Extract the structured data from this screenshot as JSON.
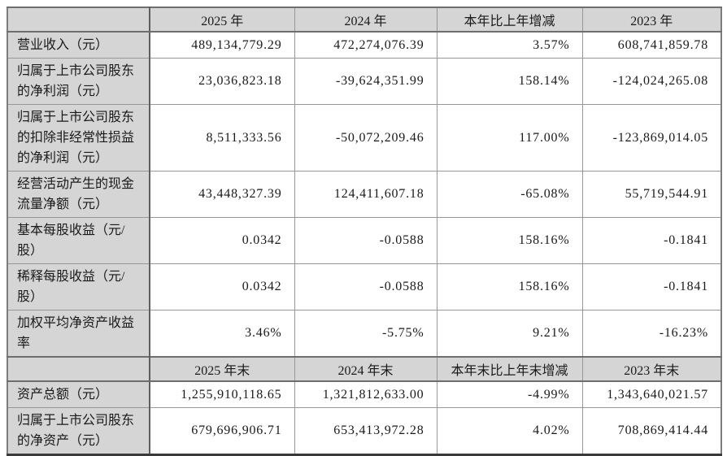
{
  "table": {
    "header1": [
      "",
      "2025 年",
      "2024 年",
      "本年比上年增减",
      "2023 年"
    ],
    "rows1": [
      {
        "label": "营业收入（元）",
        "y2025": "489,134,779.29",
        "y2024": "472,274,076.39",
        "change": "3.57%",
        "y2023": "608,741,859.78"
      },
      {
        "label": "归属于上市公司股东的净利润（元）",
        "y2025": "23,036,823.18",
        "y2024": "-39,624,351.99",
        "change": "158.14%",
        "y2023": "-124,024,265.08"
      },
      {
        "label": "归属于上市公司股东的扣除非经常性损益的净利润（元）",
        "y2025": "8,511,333.56",
        "y2024": "-50,072,209.46",
        "change": "117.00%",
        "y2023": "-123,869,014.05"
      },
      {
        "label": "经营活动产生的现金流量净额（元）",
        "y2025": "43,448,327.39",
        "y2024": "124,411,607.18",
        "change": "-65.08%",
        "y2023": "55,719,544.91"
      },
      {
        "label": "基本每股收益（元/股）",
        "y2025": "0.0342",
        "y2024": "-0.0588",
        "change": "158.16%",
        "y2023": "-0.1841"
      },
      {
        "label": "稀释每股收益（元/股）",
        "y2025": "0.0342",
        "y2024": "-0.0588",
        "change": "158.16%",
        "y2023": "-0.1841"
      },
      {
        "label": "加权平均净资产收益率",
        "y2025": "3.46%",
        "y2024": "-5.75%",
        "change": "9.21%",
        "y2023": "-16.23%"
      }
    ],
    "header2": [
      "",
      "2025 年末",
      "2024 年末",
      "本年末比上年末增减",
      "2023 年末"
    ],
    "rows2": [
      {
        "label": "资产总额（元）",
        "y2025": "1,255,910,118.65",
        "y2024": "1,321,812,633.00",
        "change": "-4.99%",
        "y2023": "1,343,640,021.57"
      },
      {
        "label": "归属于上市公司股东的净资产（元）",
        "y2025": "679,696,906.71",
        "y2024": "653,413,972.28",
        "change": "4.02%",
        "y2023": "708,869,414.44"
      }
    ],
    "colors": {
      "header_bg": "#d5d5d5",
      "label_bg": "#d5d5d5",
      "grid_border": "#979797",
      "heavy_border": "#5f5f5f",
      "bottom_border": "#3a3a3a",
      "text": "#1a1a1a"
    }
  }
}
